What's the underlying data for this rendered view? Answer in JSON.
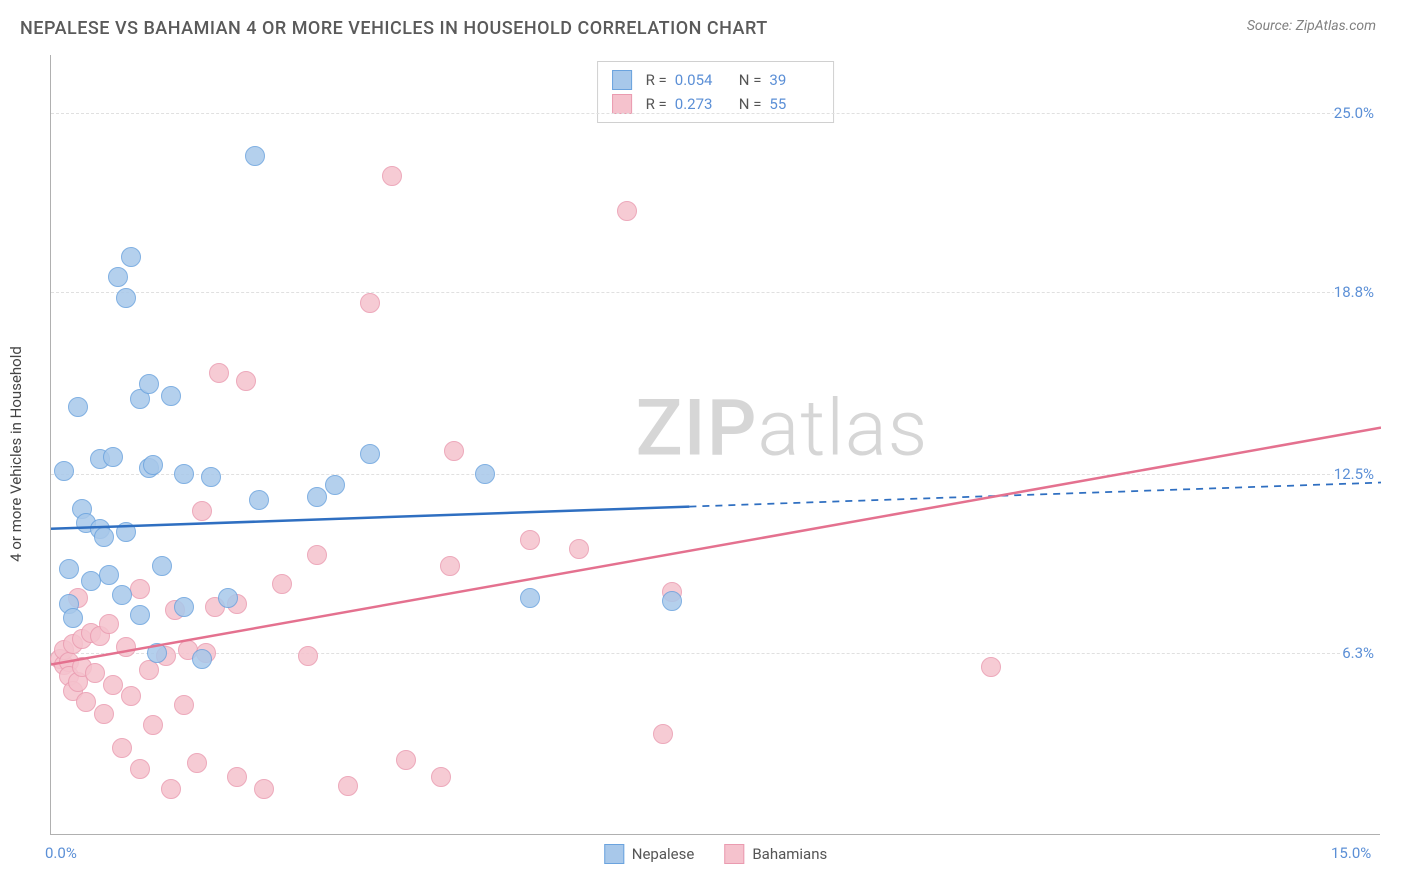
{
  "header": {
    "title": "NEPALESE VS BAHAMIAN 4 OR MORE VEHICLES IN HOUSEHOLD CORRELATION CHART",
    "source": "Source: ZipAtlas.com"
  },
  "chart": {
    "type": "scatter",
    "y_axis_title": "4 or more Vehicles in Household",
    "background_color": "#ffffff",
    "grid_color": "#e0e0e0",
    "axis_line_color": "#b0b0b0",
    "tick_label_color": "#5b8fd6",
    "x_range": [
      0,
      15
    ],
    "y_range": [
      0,
      27
    ],
    "x_ticks": [
      {
        "value": 0,
        "label": "0.0%"
      },
      {
        "value": 15,
        "label": "15.0%"
      }
    ],
    "y_ticks": [
      {
        "value": 6.3,
        "label": "6.3%"
      },
      {
        "value": 12.5,
        "label": "12.5%"
      },
      {
        "value": 18.8,
        "label": "18.8%"
      },
      {
        "value": 25.0,
        "label": "25.0%"
      }
    ],
    "watermark": {
      "text_bold": "ZIP",
      "text_light": "atlas"
    },
    "series": [
      {
        "name": "Nepalese",
        "R": "0.054",
        "N": "39",
        "fill_color": "#a8c8ea",
        "stroke_color": "#6ba3de",
        "marker_radius": 10,
        "trend_line": {
          "x1": 0,
          "y1": 10.6,
          "x2": 15,
          "y2": 12.2,
          "color": "#2f6fc1",
          "width": 2.5,
          "solid_until_x": 7.2
        },
        "points": [
          {
            "x": 0.15,
            "y": 12.6
          },
          {
            "x": 0.2,
            "y": 9.2
          },
          {
            "x": 0.2,
            "y": 8.0
          },
          {
            "x": 0.25,
            "y": 7.5
          },
          {
            "x": 0.3,
            "y": 14.8
          },
          {
            "x": 0.35,
            "y": 11.3
          },
          {
            "x": 0.4,
            "y": 10.8
          },
          {
            "x": 0.55,
            "y": 13.0
          },
          {
            "x": 0.55,
            "y": 10.6
          },
          {
            "x": 0.6,
            "y": 10.3
          },
          {
            "x": 0.65,
            "y": 9.0
          },
          {
            "x": 0.7,
            "y": 13.1
          },
          {
            "x": 0.75,
            "y": 19.3
          },
          {
            "x": 0.8,
            "y": 8.3
          },
          {
            "x": 0.85,
            "y": 18.6
          },
          {
            "x": 0.85,
            "y": 10.5
          },
          {
            "x": 0.9,
            "y": 20.0
          },
          {
            "x": 1.0,
            "y": 7.6
          },
          {
            "x": 1.0,
            "y": 15.1
          },
          {
            "x": 1.1,
            "y": 15.6
          },
          {
            "x": 1.1,
            "y": 12.7
          },
          {
            "x": 1.15,
            "y": 12.8
          },
          {
            "x": 1.2,
            "y": 6.3
          },
          {
            "x": 1.25,
            "y": 9.3
          },
          {
            "x": 1.35,
            "y": 15.2
          },
          {
            "x": 1.5,
            "y": 7.9
          },
          {
            "x": 1.5,
            "y": 12.5
          },
          {
            "x": 1.7,
            "y": 6.1
          },
          {
            "x": 1.8,
            "y": 12.4
          },
          {
            "x": 2.0,
            "y": 8.2
          },
          {
            "x": 2.3,
            "y": 23.5
          },
          {
            "x": 2.35,
            "y": 11.6
          },
          {
            "x": 3.0,
            "y": 11.7
          },
          {
            "x": 3.2,
            "y": 12.1
          },
          {
            "x": 3.6,
            "y": 13.2
          },
          {
            "x": 4.9,
            "y": 12.5
          },
          {
            "x": 5.4,
            "y": 8.2
          },
          {
            "x": 7.0,
            "y": 8.1
          },
          {
            "x": 0.45,
            "y": 8.8
          }
        ]
      },
      {
        "name": "Bahamians",
        "R": "0.273",
        "N": "55",
        "fill_color": "#f5c2cd",
        "stroke_color": "#ea9bb0",
        "marker_radius": 10,
        "trend_line": {
          "x1": 0,
          "y1": 5.9,
          "x2": 15,
          "y2": 14.1,
          "color": "#e4718f",
          "width": 2.5,
          "solid_until_x": 15
        },
        "points": [
          {
            "x": 0.1,
            "y": 6.1
          },
          {
            "x": 0.15,
            "y": 5.9
          },
          {
            "x": 0.15,
            "y": 6.4
          },
          {
            "x": 0.2,
            "y": 6.0
          },
          {
            "x": 0.2,
            "y": 5.5
          },
          {
            "x": 0.25,
            "y": 5.0
          },
          {
            "x": 0.25,
            "y": 6.6
          },
          {
            "x": 0.3,
            "y": 8.2
          },
          {
            "x": 0.3,
            "y": 5.3
          },
          {
            "x": 0.35,
            "y": 6.8
          },
          {
            "x": 0.35,
            "y": 5.8
          },
          {
            "x": 0.4,
            "y": 4.6
          },
          {
            "x": 0.45,
            "y": 7.0
          },
          {
            "x": 0.5,
            "y": 5.6
          },
          {
            "x": 0.55,
            "y": 6.9
          },
          {
            "x": 0.6,
            "y": 4.2
          },
          {
            "x": 0.65,
            "y": 7.3
          },
          {
            "x": 0.7,
            "y": 5.2
          },
          {
            "x": 0.8,
            "y": 3.0
          },
          {
            "x": 0.85,
            "y": 6.5
          },
          {
            "x": 0.9,
            "y": 4.8
          },
          {
            "x": 1.0,
            "y": 2.3
          },
          {
            "x": 1.0,
            "y": 8.5
          },
          {
            "x": 1.1,
            "y": 5.7
          },
          {
            "x": 1.15,
            "y": 3.8
          },
          {
            "x": 1.3,
            "y": 6.2
          },
          {
            "x": 1.35,
            "y": 1.6
          },
          {
            "x": 1.4,
            "y": 7.8
          },
          {
            "x": 1.5,
            "y": 4.5
          },
          {
            "x": 1.55,
            "y": 6.4
          },
          {
            "x": 1.65,
            "y": 2.5
          },
          {
            "x": 1.7,
            "y": 11.2
          },
          {
            "x": 1.75,
            "y": 6.3
          },
          {
            "x": 1.85,
            "y": 7.9
          },
          {
            "x": 1.9,
            "y": 16.0
          },
          {
            "x": 2.1,
            "y": 2.0
          },
          {
            "x": 2.1,
            "y": 8.0
          },
          {
            "x": 2.2,
            "y": 15.7
          },
          {
            "x": 2.4,
            "y": 1.6
          },
          {
            "x": 2.6,
            "y": 8.7
          },
          {
            "x": 2.9,
            "y": 6.2
          },
          {
            "x": 3.0,
            "y": 9.7
          },
          {
            "x": 3.35,
            "y": 1.7
          },
          {
            "x": 3.6,
            "y": 18.4
          },
          {
            "x": 3.85,
            "y": 22.8
          },
          {
            "x": 4.0,
            "y": 2.6
          },
          {
            "x": 4.4,
            "y": 2.0
          },
          {
            "x": 4.5,
            "y": 9.3
          },
          {
            "x": 4.55,
            "y": 13.3
          },
          {
            "x": 5.4,
            "y": 10.2
          },
          {
            "x": 5.95,
            "y": 9.9
          },
          {
            "x": 6.5,
            "y": 21.6
          },
          {
            "x": 6.9,
            "y": 3.5
          },
          {
            "x": 7.0,
            "y": 8.4
          },
          {
            "x": 10.6,
            "y": 5.8
          }
        ]
      }
    ],
    "legend_bottom": [
      {
        "label": "Nepalese",
        "fill": "#a8c8ea",
        "stroke": "#6ba3de"
      },
      {
        "label": "Bahamians",
        "fill": "#f5c2cd",
        "stroke": "#ea9bb0"
      }
    ]
  }
}
